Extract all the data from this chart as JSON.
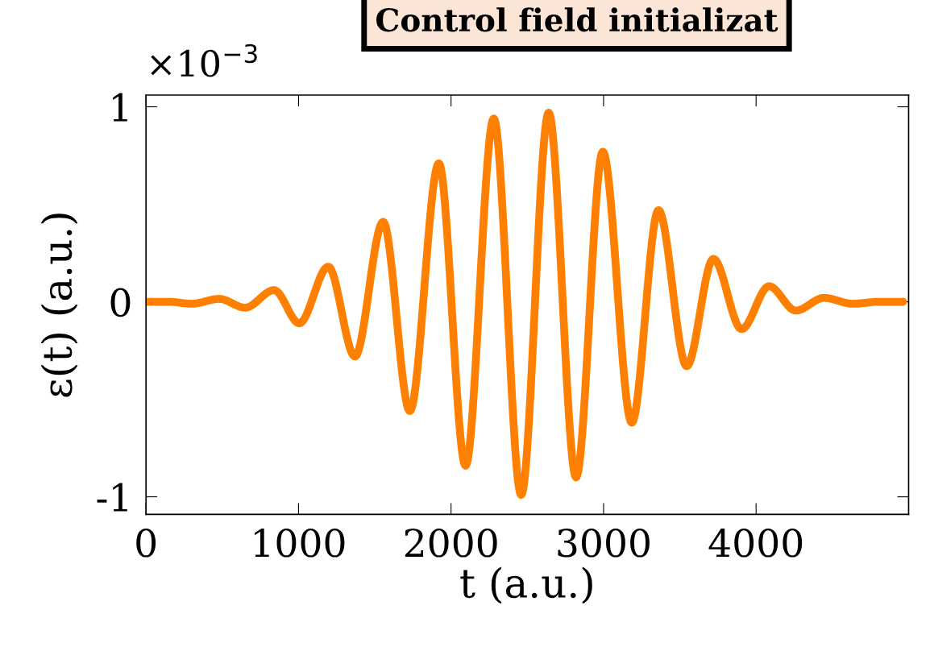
{
  "chart_data": {
    "type": "line",
    "title": "Control field initializat",
    "xlabel": "t (a.u.)",
    "ylabel": "ε(t) (a.u.)",
    "annotations": [
      "×10$^{−3}$"
    ],
    "series": [
      {
        "color": "#ff8000",
        "x": [
          0,
          150,
          300,
          480,
          650,
          840,
          1005,
          1195,
          1370,
          1555,
          1730,
          1920,
          2095,
          2280,
          2460,
          2640,
          2820,
          2995,
          3185,
          3360,
          3545,
          3720,
          3905,
          4085,
          4260,
          4445,
          4635,
          4800,
          4964
        ],
        "values": [
          0,
          0,
          -0.01,
          0.015,
          -0.03,
          0.06,
          -0.11,
          0.18,
          -0.28,
          0.41,
          -0.56,
          0.71,
          -0.84,
          0.94,
          -0.99,
          0.97,
          -0.9,
          0.77,
          -0.62,
          0.47,
          -0.33,
          0.22,
          -0.14,
          0.08,
          -0.045,
          0.02,
          -0.01,
          0,
          0
        ]
      }
    ],
    "xlim": [
      0,
      5000
    ],
    "xticks": [
      0,
      1000,
      2000,
      3000,
      4000
    ],
    "ylim": [
      -1.09,
      1.06
    ],
    "yticks": [
      {
        "value": -1,
        "label": "-1"
      },
      0,
      1
    ],
    "grid": false,
    "legend": false,
    "line_style": "solid",
    "marker": "none"
  }
}
